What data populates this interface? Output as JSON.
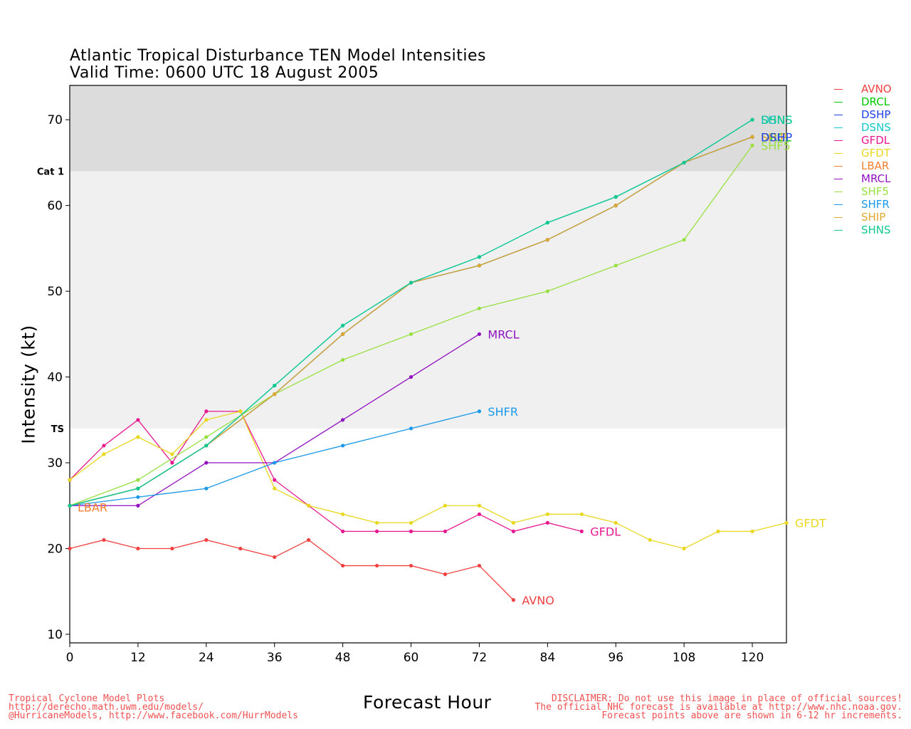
{
  "title_line1": "Atlantic Tropical Disturbance TEN Model Intensities",
  "title_line2": "Valid Time: 0600 UTC 18 August 2005",
  "footer_left": [
    "Tropical Cyclone Model Plots",
    "http://derecho.math.uwm.edu/models/",
    "@HurricaneModels, http://www.facebook.com/HurrModels"
  ],
  "footer_right": [
    "DISCLAIMER: Do not use this image in place of official sources!",
    "The official NHC forecast is available at http://www.nhc.noaa.gov.",
    "Forecast points above are shown in 6-12 hr increments."
  ],
  "chart_data": {
    "type": "line",
    "title": "Atlantic Tropical Disturbance TEN Model Intensities",
    "subtitle": "Valid Time: 0600 UTC 18 August 2005",
    "xlabel": "Forecast Hour",
    "ylabel": "Intensity (kt)",
    "xlim": [
      0,
      126
    ],
    "ylim": [
      9,
      74
    ],
    "xticks": [
      0,
      12,
      24,
      36,
      48,
      60,
      72,
      84,
      96,
      108,
      120
    ],
    "yticks": [
      10,
      20,
      30,
      40,
      50,
      60,
      70
    ],
    "grid": false,
    "legend": "right",
    "bands": [
      {
        "label": "Cat 1",
        "from": 64,
        "to": 74,
        "color": "#dcdcdc"
      },
      {
        "label": "TS",
        "from": 34,
        "to": 64,
        "color": "#f0f0f0"
      }
    ],
    "series": [
      {
        "name": "AVNO",
        "color": "#f04040",
        "x": [
          0,
          6,
          12,
          18,
          24,
          30,
          36,
          42,
          48,
          54,
          60,
          66,
          72,
          78
        ],
        "y": [
          20,
          21,
          20,
          20,
          21,
          20,
          19,
          21,
          18,
          18,
          18,
          17,
          18,
          14
        ]
      },
      {
        "name": "DRCL",
        "color": "#00c800",
        "x": [
          0,
          12,
          24,
          36,
          48,
          60,
          72,
          84,
          96,
          108,
          120
        ],
        "y": [
          25,
          27,
          32,
          38,
          45,
          51,
          53,
          56,
          60,
          65,
          68
        ]
      },
      {
        "name": "DSHP",
        "color": "#2040e8",
        "x": [
          0,
          12,
          24,
          36,
          48,
          60,
          72,
          84,
          96,
          108,
          120
        ],
        "y": [
          25,
          27,
          32,
          38,
          45,
          51,
          53,
          56,
          60,
          65,
          68
        ]
      },
      {
        "name": "DSNS",
        "color": "#10c8c8",
        "x": [
          0,
          12,
          24,
          36,
          48,
          60,
          72,
          84,
          96,
          108,
          120
        ],
        "y": [
          25,
          27,
          32,
          39,
          46,
          51,
          54,
          58,
          61,
          65,
          70
        ]
      },
      {
        "name": "GFDL",
        "color": "#e81890",
        "x": [
          0,
          6,
          12,
          18,
          24,
          30,
          36,
          42,
          48,
          54,
          60,
          66,
          72,
          78,
          84,
          90
        ],
        "y": [
          28,
          32,
          35,
          30,
          36,
          36,
          28,
          25,
          22,
          22,
          22,
          22,
          24,
          22,
          23,
          22
        ]
      },
      {
        "name": "GFDT",
        "color": "#e8d820",
        "x": [
          0,
          6,
          12,
          18,
          24,
          30,
          36,
          42,
          48,
          54,
          60,
          66,
          72,
          78,
          84,
          90,
          96,
          102,
          108,
          114,
          120,
          126
        ],
        "y": [
          28,
          31,
          33,
          31,
          35,
          36,
          27,
          25,
          24,
          23,
          23,
          25,
          25,
          23,
          24,
          24,
          23,
          21,
          20,
          22,
          22,
          23
        ]
      },
      {
        "name": "LBAR",
        "color": "#f08030",
        "x": [
          0
        ],
        "y": [
          25
        ]
      },
      {
        "name": "MRCL",
        "color": "#9010c0",
        "x": [
          0,
          12,
          24,
          36,
          48,
          60,
          72
        ],
        "y": [
          25,
          25,
          30,
          30,
          35,
          40,
          45
        ]
      },
      {
        "name": "SHF5",
        "color": "#98e040",
        "x": [
          0,
          12,
          24,
          36,
          48,
          60,
          72,
          84,
          96,
          108,
          120
        ],
        "y": [
          25,
          28,
          33,
          38,
          42,
          45,
          48,
          50,
          53,
          56,
          67
        ]
      },
      {
        "name": "SHFR",
        "color": "#1898e8",
        "x": [
          0,
          12,
          24,
          36,
          48,
          60,
          72
        ],
        "y": [
          25,
          26,
          27,
          30,
          32,
          34,
          36
        ]
      },
      {
        "name": "SHIP",
        "color": "#e0a830",
        "x": [
          0,
          12,
          24,
          36,
          48,
          60,
          72,
          84,
          96,
          108,
          120
        ],
        "y": [
          25,
          27,
          32,
          38,
          45,
          51,
          53,
          56,
          60,
          65,
          68
        ]
      },
      {
        "name": "SHNS",
        "color": "#10c890",
        "x": [
          0,
          12,
          24,
          36,
          48,
          60,
          72,
          84,
          96,
          108,
          120
        ],
        "y": [
          25,
          27,
          32,
          39,
          46,
          51,
          54,
          58,
          61,
          65,
          70
        ]
      }
    ],
    "end_labels": [
      {
        "series": "AVNO",
        "text": "AVNO"
      },
      {
        "series": "GFDL",
        "text": "GFDL"
      },
      {
        "series": "GFDT",
        "text": "GFDT"
      },
      {
        "series": "LBAR",
        "text": "LBAR"
      },
      {
        "series": "MRCL",
        "text": "MRCL"
      },
      {
        "series": "SHFR",
        "text": "SHFR"
      },
      {
        "series": "DRCL",
        "text": "DRCL"
      },
      {
        "series": "SHF5",
        "text": "SHF5"
      },
      {
        "series": "SHIP",
        "text": "SHIP"
      },
      {
        "series": "DSHP",
        "text": "DSHP"
      },
      {
        "series": "DSNS",
        "text": "DSNS"
      },
      {
        "series": "SHNS",
        "text": "SHNS"
      }
    ]
  }
}
